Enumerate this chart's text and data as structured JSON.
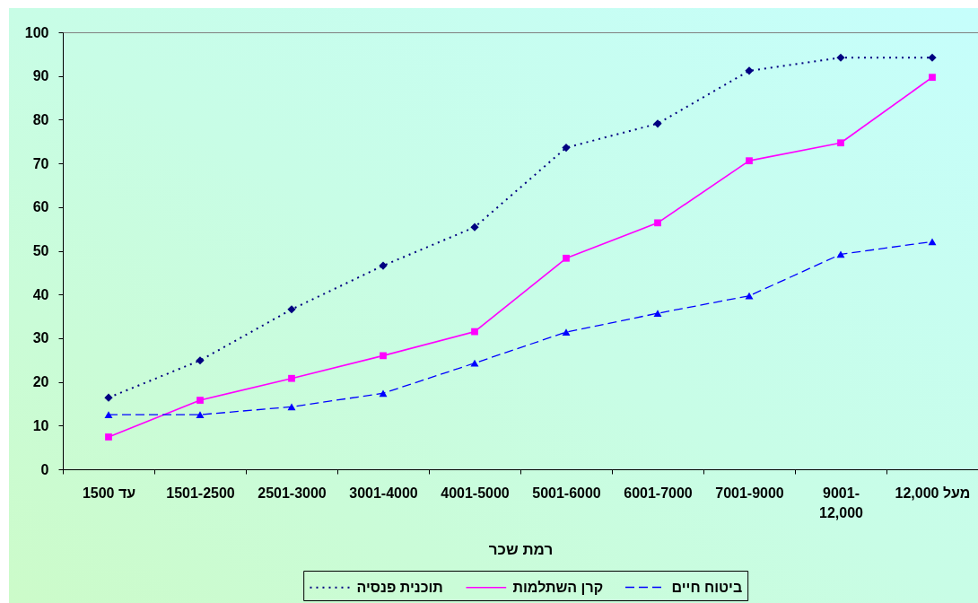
{
  "chart_data": {
    "type": "line",
    "xlabel": "רמת שכר",
    "categories": [
      "1500 עד",
      "1501-2500",
      "2501-3000",
      "3001-4000",
      "4001-5000",
      "5001-6000",
      "6001-7000",
      "7001-9000",
      "9001-12,000",
      "מעל 12,000"
    ],
    "series": [
      {
        "name": "תוכנית פנסיה",
        "color": "#000080",
        "marker": "diamond",
        "line_style": "dotted",
        "values": [
          16.4,
          24.9,
          36.6,
          46.6,
          55.4,
          73.6,
          79.1,
          91.2,
          94.2,
          94.2
        ]
      },
      {
        "name": "קרן השתלמות",
        "color": "#ff00ff",
        "marker": "square",
        "line_style": "solid",
        "values": [
          7.4,
          15.8,
          20.8,
          26.0,
          31.5,
          48.3,
          56.4,
          70.6,
          74.7,
          89.7
        ]
      },
      {
        "name": "ביטוח חיים",
        "color": "#0000ff",
        "marker": "triangle",
        "line_style": "dashed",
        "values": [
          12.5,
          12.5,
          14.3,
          17.4,
          24.3,
          31.4,
          35.7,
          39.7,
          49.2,
          52.1
        ]
      }
    ],
    "ylim": [
      0,
      100
    ],
    "yticks": [
      0,
      10,
      20,
      30,
      40,
      50,
      60,
      70,
      80,
      90,
      100
    ],
    "grid": false,
    "legend": "bottom"
  }
}
